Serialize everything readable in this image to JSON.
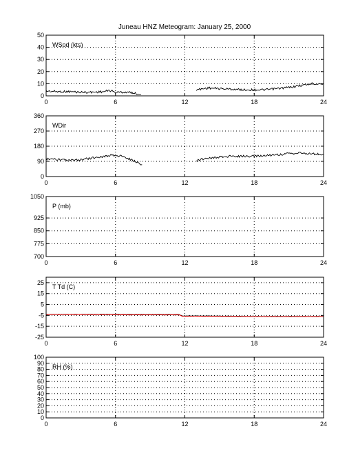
{
  "title": "Juneau HNZ Meteogram:    January 25, 2000",
  "colors": {
    "series_primary": "#000000",
    "series_secondary": "#ff0000",
    "grid": "#000000",
    "axes": "#000000"
  },
  "chart_data": [
    {
      "type": "line",
      "label": "WSpd (kts)",
      "xlim": [
        0,
        24
      ],
      "ylim": [
        0,
        50
      ],
      "xticks": [
        0,
        6,
        12,
        18,
        24
      ],
      "yticks": [
        0,
        10,
        20,
        30,
        40,
        50
      ],
      "grid": true,
      "series": [
        {
          "segments": [
            {
              "x": [
                0,
                1,
                2,
                3,
                4,
                5,
                5.5,
                6,
                7,
                7.5,
                8.2
              ],
              "y": [
                4,
                3.5,
                3.5,
                3,
                3,
                3.5,
                4.5,
                3,
                3,
                2.5,
                1
              ]
            },
            {
              "x": [
                13,
                14,
                15,
                16,
                17,
                18,
                19,
                20,
                21,
                22,
                23,
                24
              ],
              "y": [
                5,
                6.5,
                6,
                5.5,
                5,
                5,
                5,
                6,
                7,
                8.5,
                10,
                10
              ]
            }
          ]
        }
      ]
    },
    {
      "type": "line",
      "label": "WDir",
      "xlim": [
        0,
        24
      ],
      "ylim": [
        0,
        360
      ],
      "xticks": [
        0,
        6,
        12,
        18,
        24
      ],
      "yticks": [
        0,
        90,
        180,
        270,
        360
      ],
      "grid": true,
      "series": [
        {
          "segments": [
            {
              "x": [
                0,
                1,
                2,
                3,
                4,
                5,
                5.5,
                6,
                6.5,
                7,
                7.5,
                8,
                8.3
              ],
              "y": [
                105,
                100,
                95,
                100,
                110,
                120,
                125,
                125,
                120,
                110,
                95,
                80,
                70
              ]
            },
            {
              "x": [
                13,
                14,
                15,
                16,
                17,
                18,
                19,
                20,
                21,
                22,
                23,
                24
              ],
              "y": [
                95,
                110,
                115,
                120,
                120,
                120,
                125,
                130,
                135,
                140,
                135,
                130
              ]
            }
          ]
        }
      ]
    },
    {
      "type": "line",
      "label": "P (mb)",
      "xlim": [
        0,
        24
      ],
      "ylim": [
        700,
        1050
      ],
      "xticks": [
        0,
        6,
        12,
        18,
        24
      ],
      "yticks": [
        700,
        775,
        850,
        925,
        1050
      ],
      "grid": true,
      "series": []
    },
    {
      "type": "line",
      "label": "T Td (C)",
      "xlim": [
        0,
        24
      ],
      "ylim": [
        -25,
        30
      ],
      "xticks": [
        0,
        6,
        12,
        18,
        24
      ],
      "yticks": [
        -25,
        -15,
        -5,
        5,
        15,
        25
      ],
      "grid": true,
      "series": [
        {
          "color": "#000000",
          "segments": [
            {
              "x": [
                0,
                3,
                5,
                7,
                11.5,
                11.8,
                14,
                17,
                18,
                24
              ],
              "y": [
                -4,
                -4,
                -4,
                -4.2,
                -4.2,
                -5.5,
                -5.5,
                -5.8,
                -6,
                -6
              ]
            }
          ]
        },
        {
          "color": "#ff0000",
          "segments": [
            {
              "x": [
                0,
                3,
                5,
                7,
                11.5,
                11.8,
                14,
                17,
                18,
                24
              ],
              "y": [
                -4.2,
                -4.2,
                -4.3,
                -4.5,
                -4.5,
                -5.8,
                -5.8,
                -6,
                -6.2,
                -6.2
              ]
            }
          ]
        }
      ]
    },
    {
      "type": "line",
      "label": "RH (%)",
      "xlim": [
        0,
        24
      ],
      "ylim": [
        0,
        100
      ],
      "xticks": [
        0,
        6,
        12,
        18,
        24
      ],
      "yticks": [
        0,
        10,
        20,
        30,
        40,
        50,
        60,
        70,
        80,
        90,
        100
      ],
      "grid": true,
      "series": []
    }
  ]
}
